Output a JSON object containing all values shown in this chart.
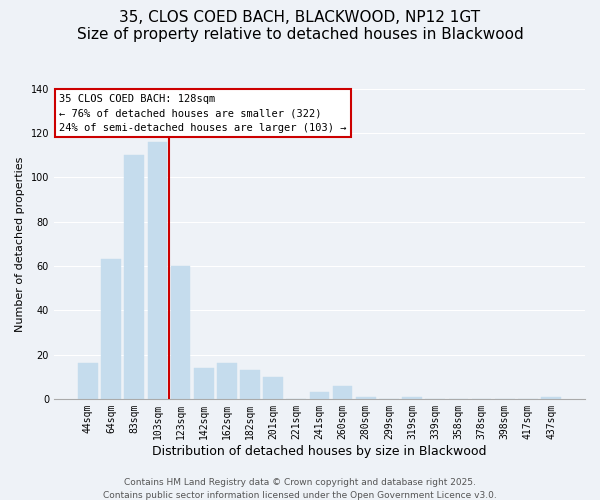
{
  "title": "35, CLOS COED BACH, BLACKWOOD, NP12 1GT",
  "subtitle": "Size of property relative to detached houses in Blackwood",
  "xlabel": "Distribution of detached houses by size in Blackwood",
  "ylabel": "Number of detached properties",
  "bar_labels": [
    "44sqm",
    "64sqm",
    "83sqm",
    "103sqm",
    "123sqm",
    "142sqm",
    "162sqm",
    "182sqm",
    "201sqm",
    "221sqm",
    "241sqm",
    "260sqm",
    "280sqm",
    "299sqm",
    "319sqm",
    "339sqm",
    "358sqm",
    "378sqm",
    "398sqm",
    "417sqm",
    "437sqm"
  ],
  "bar_values": [
    16,
    63,
    110,
    116,
    60,
    14,
    16,
    13,
    10,
    0,
    3,
    6,
    1,
    0,
    1,
    0,
    0,
    0,
    0,
    0,
    1
  ],
  "bar_color": "#c5dced",
  "vline_bar_index": 3,
  "vline_color": "#cc0000",
  "annotation_title": "35 CLOS COED BACH: 128sqm",
  "annotation_line1": "← 76% of detached houses are smaller (322)",
  "annotation_line2": "24% of semi-detached houses are larger (103) →",
  "annotation_box_color": "#ffffff",
  "annotation_box_edge": "#cc0000",
  "ylim": [
    0,
    140
  ],
  "yticks": [
    0,
    20,
    40,
    60,
    80,
    100,
    120,
    140
  ],
  "background_color": "#eef2f7",
  "grid_color": "#ffffff",
  "footer1": "Contains HM Land Registry data © Crown copyright and database right 2025.",
  "footer2": "Contains public sector information licensed under the Open Government Licence v3.0.",
  "title_fontsize": 11,
  "subtitle_fontsize": 9.5,
  "xlabel_fontsize": 9,
  "ylabel_fontsize": 8,
  "tick_fontsize": 7,
  "footer_fontsize": 6.5
}
